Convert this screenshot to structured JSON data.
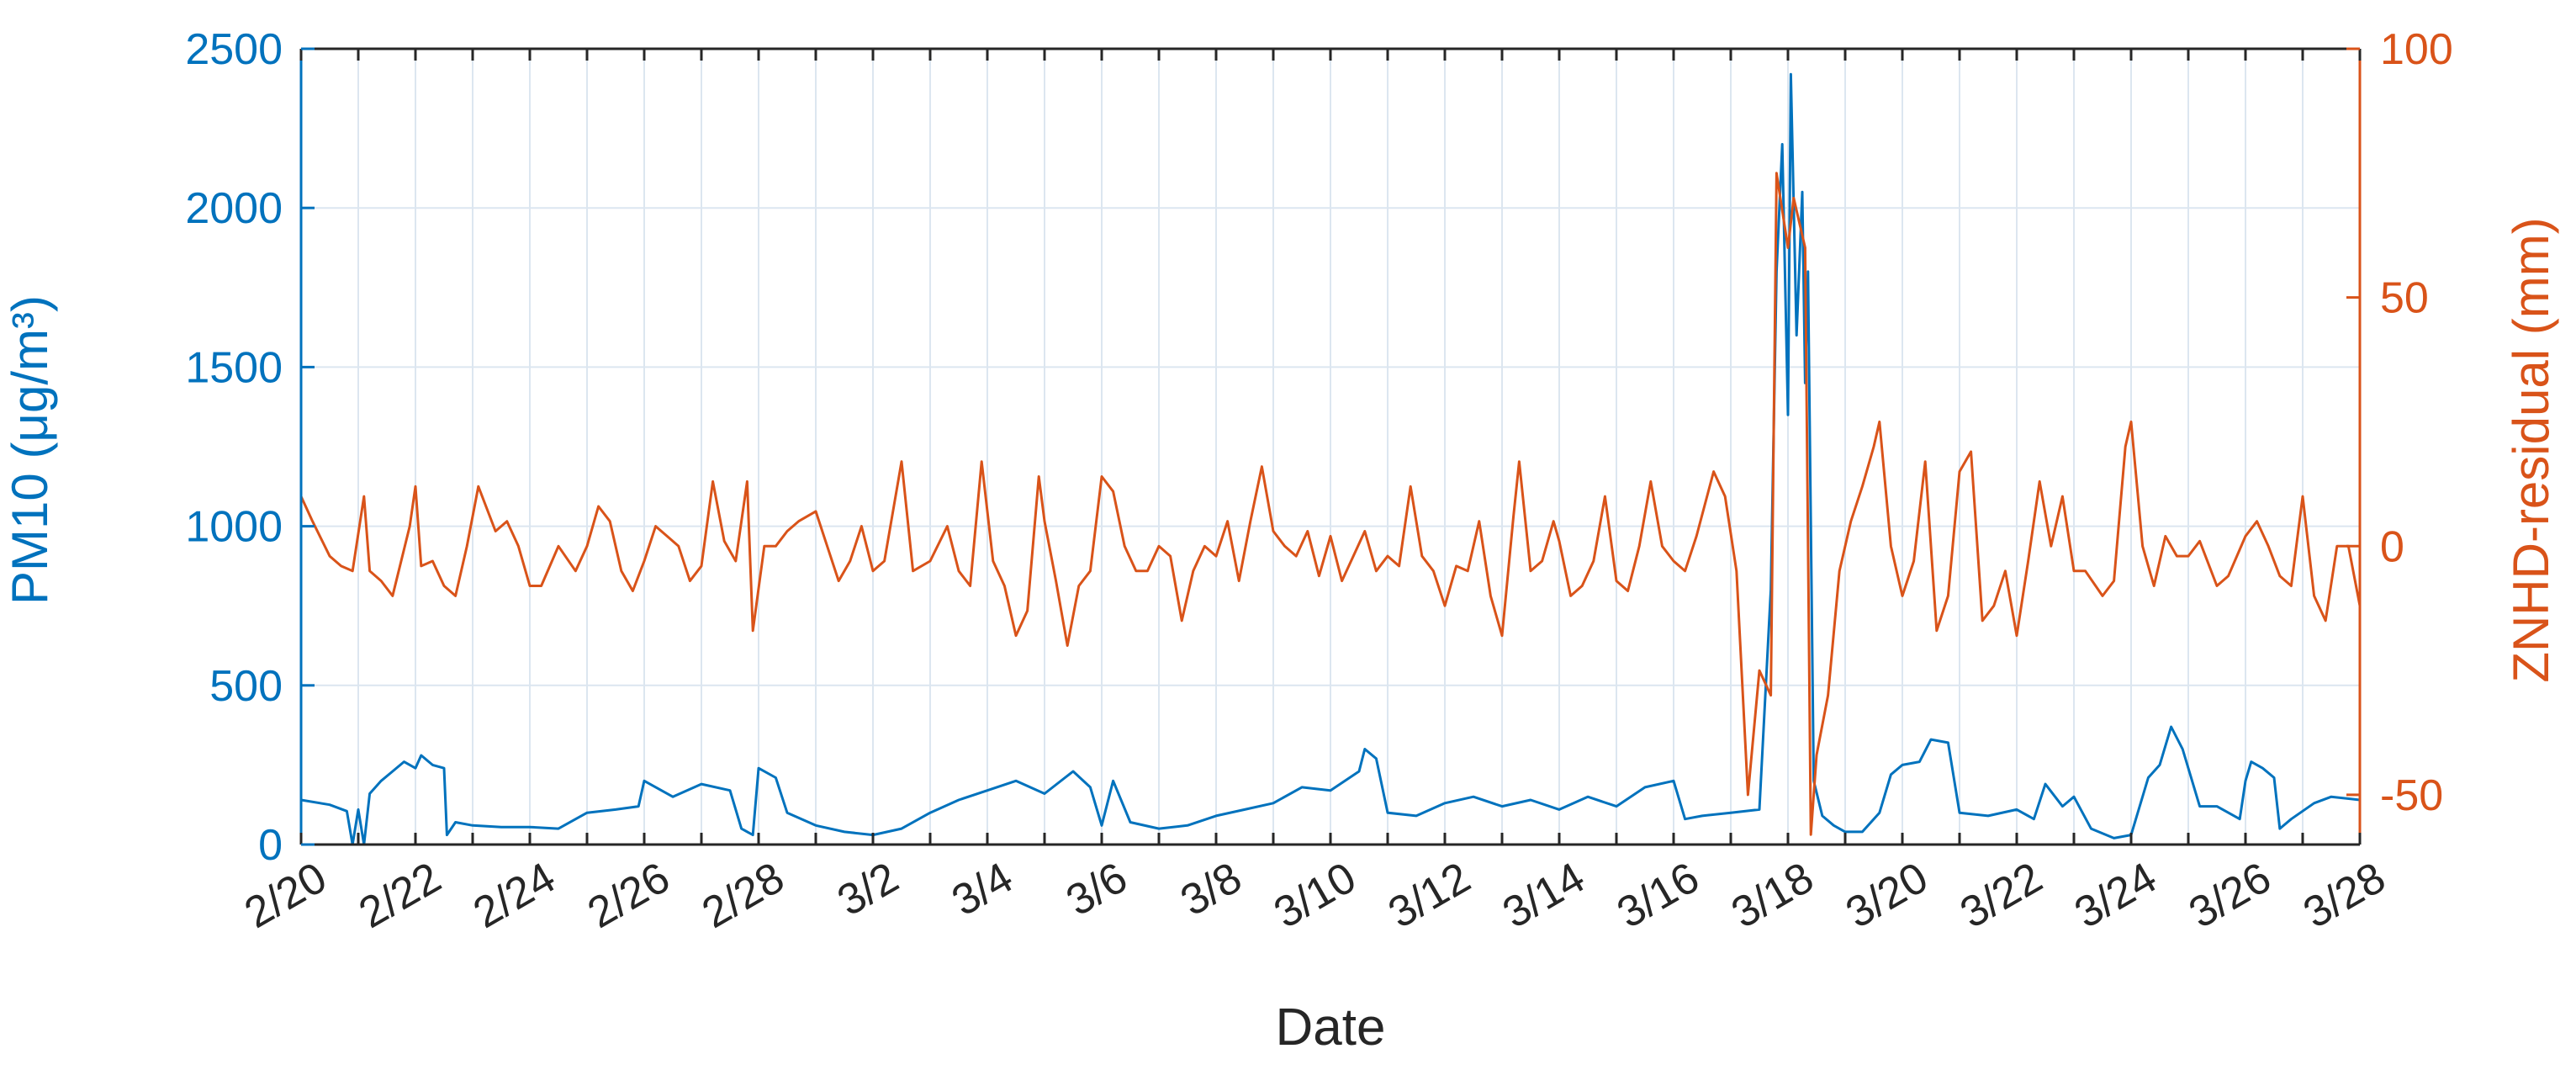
{
  "chart_data": {
    "type": "line",
    "xlabel": "Date",
    "ylabel_left": "PM10 (μg/m³)",
    "ylabel_right": "ZNHD-residual (mm)",
    "x_ticks": [
      "2/20",
      "2/22",
      "2/24",
      "2/26",
      "2/28",
      "3/2",
      "3/4",
      "3/6",
      "3/8",
      "3/10",
      "3/12",
      "3/14",
      "3/16",
      "3/18",
      "3/20",
      "3/22",
      "3/24",
      "3/26",
      "3/28"
    ],
    "x_range_days": [
      0,
      36
    ],
    "y_left": {
      "lim": [
        0,
        2500
      ],
      "ticks": [
        0,
        500,
        1000,
        1500,
        2000,
        2500
      ]
    },
    "y_right": {
      "lim": [
        -60,
        100
      ],
      "ticks": [
        -50,
        0,
        50,
        100
      ]
    },
    "grid": true,
    "colors": {
      "left_series": "#0072BD",
      "right_series": "#D95319",
      "axis_text": "#262626",
      "grid": "#DCE6F0"
    },
    "series": [
      {
        "name": "PM10",
        "axis": "left",
        "points": [
          [
            0,
            140
          ],
          [
            0.5,
            125
          ],
          [
            0.8,
            105
          ],
          [
            0.9,
            0
          ],
          [
            1.0,
            110
          ],
          [
            1.1,
            0
          ],
          [
            1.2,
            160
          ],
          [
            1.4,
            200
          ],
          [
            1.6,
            230
          ],
          [
            1.8,
            260
          ],
          [
            2.0,
            240
          ],
          [
            2.1,
            280
          ],
          [
            2.3,
            250
          ],
          [
            2.5,
            240
          ],
          [
            2.55,
            30
          ],
          [
            2.7,
            70
          ],
          [
            3.0,
            60
          ],
          [
            3.5,
            55
          ],
          [
            4.0,
            55
          ],
          [
            4.5,
            50
          ],
          [
            5.0,
            100
          ],
          [
            5.5,
            110
          ],
          [
            5.9,
            120
          ],
          [
            6.0,
            200
          ],
          [
            6.5,
            150
          ],
          [
            7.0,
            190
          ],
          [
            7.5,
            170
          ],
          [
            7.7,
            50
          ],
          [
            7.9,
            30
          ],
          [
            8.0,
            240
          ],
          [
            8.3,
            210
          ],
          [
            8.5,
            100
          ],
          [
            9.0,
            60
          ],
          [
            9.5,
            40
          ],
          [
            10.0,
            30
          ],
          [
            10.5,
            50
          ],
          [
            11.0,
            100
          ],
          [
            11.5,
            140
          ],
          [
            12.0,
            170
          ],
          [
            12.5,
            200
          ],
          [
            13.0,
            160
          ],
          [
            13.5,
            230
          ],
          [
            13.8,
            180
          ],
          [
            14.0,
            60
          ],
          [
            14.2,
            200
          ],
          [
            14.5,
            70
          ],
          [
            15.0,
            50
          ],
          [
            15.5,
            60
          ],
          [
            16.0,
            90
          ],
          [
            16.5,
            110
          ],
          [
            17.0,
            130
          ],
          [
            17.5,
            180
          ],
          [
            18.0,
            170
          ],
          [
            18.5,
            230
          ],
          [
            18.6,
            300
          ],
          [
            18.8,
            270
          ],
          [
            19.0,
            100
          ],
          [
            19.5,
            90
          ],
          [
            20.0,
            130
          ],
          [
            20.5,
            150
          ],
          [
            21.0,
            120
          ],
          [
            21.5,
            140
          ],
          [
            22.0,
            110
          ],
          [
            22.5,
            150
          ],
          [
            23.0,
            120
          ],
          [
            23.5,
            180
          ],
          [
            24.0,
            200
          ],
          [
            24.2,
            80
          ],
          [
            24.5,
            90
          ],
          [
            25.0,
            100
          ],
          [
            25.5,
            110
          ],
          [
            25.7,
            800
          ],
          [
            25.8,
            1800
          ],
          [
            25.9,
            2200
          ],
          [
            26.0,
            1350
          ],
          [
            26.05,
            2420
          ],
          [
            26.15,
            1600
          ],
          [
            26.25,
            2050
          ],
          [
            26.3,
            1450
          ],
          [
            26.35,
            1800
          ],
          [
            26.4,
            1000
          ],
          [
            26.45,
            200
          ],
          [
            26.6,
            90
          ],
          [
            26.8,
            60
          ],
          [
            27.0,
            40
          ],
          [
            27.3,
            40
          ],
          [
            27.6,
            100
          ],
          [
            27.8,
            220
          ],
          [
            28.0,
            250
          ],
          [
            28.3,
            260
          ],
          [
            28.5,
            330
          ],
          [
            28.8,
            320
          ],
          [
            29.0,
            100
          ],
          [
            29.5,
            90
          ],
          [
            30.0,
            110
          ],
          [
            30.3,
            80
          ],
          [
            30.5,
            190
          ],
          [
            30.8,
            120
          ],
          [
            31.0,
            150
          ],
          [
            31.3,
            50
          ],
          [
            31.7,
            20
          ],
          [
            32.0,
            30
          ],
          [
            32.3,
            210
          ],
          [
            32.5,
            250
          ],
          [
            32.7,
            370
          ],
          [
            32.9,
            300
          ],
          [
            33.2,
            120
          ],
          [
            33.5,
            120
          ],
          [
            33.9,
            80
          ],
          [
            34.0,
            200
          ],
          [
            34.1,
            260
          ],
          [
            34.3,
            240
          ],
          [
            34.5,
            210
          ],
          [
            34.6,
            50
          ],
          [
            34.8,
            80
          ],
          [
            35.2,
            130
          ],
          [
            35.5,
            150
          ],
          [
            36.0,
            140
          ]
        ]
      },
      {
        "name": "ZNHD-residual",
        "axis": "right",
        "points": [
          [
            0,
            10
          ],
          [
            0.2,
            5
          ],
          [
            0.5,
            -2
          ],
          [
            0.7,
            -4
          ],
          [
            0.9,
            -5
          ],
          [
            1.1,
            10
          ],
          [
            1.2,
            -5
          ],
          [
            1.4,
            -7
          ],
          [
            1.6,
            -10
          ],
          [
            1.9,
            4
          ],
          [
            2.0,
            12
          ],
          [
            2.1,
            -4
          ],
          [
            2.3,
            -3
          ],
          [
            2.5,
            -8
          ],
          [
            2.7,
            -10
          ],
          [
            2.9,
            0
          ],
          [
            3.1,
            12
          ],
          [
            3.4,
            3
          ],
          [
            3.6,
            5
          ],
          [
            3.8,
            0
          ],
          [
            4.0,
            -8
          ],
          [
            4.2,
            -8
          ],
          [
            4.5,
            0
          ],
          [
            4.8,
            -5
          ],
          [
            5.0,
            0
          ],
          [
            5.2,
            8
          ],
          [
            5.4,
            5
          ],
          [
            5.6,
            -5
          ],
          [
            5.8,
            -9
          ],
          [
            6.0,
            -3
          ],
          [
            6.2,
            4
          ],
          [
            6.4,
            2
          ],
          [
            6.6,
            0
          ],
          [
            6.8,
            -7
          ],
          [
            7.0,
            -4
          ],
          [
            7.2,
            13
          ],
          [
            7.4,
            1
          ],
          [
            7.6,
            -3
          ],
          [
            7.8,
            13
          ],
          [
            7.9,
            -17
          ],
          [
            8.1,
            0
          ],
          [
            8.3,
            0
          ],
          [
            8.5,
            3
          ],
          [
            8.7,
            5
          ],
          [
            9.0,
            7
          ],
          [
            9.2,
            0
          ],
          [
            9.4,
            -7
          ],
          [
            9.6,
            -3
          ],
          [
            9.8,
            4
          ],
          [
            10.0,
            -5
          ],
          [
            10.2,
            -3
          ],
          [
            10.5,
            17
          ],
          [
            10.7,
            -5
          ],
          [
            11.0,
            -3
          ],
          [
            11.3,
            4
          ],
          [
            11.5,
            -5
          ],
          [
            11.7,
            -8
          ],
          [
            11.9,
            17
          ],
          [
            12.1,
            -3
          ],
          [
            12.3,
            -8
          ],
          [
            12.5,
            -18
          ],
          [
            12.7,
            -13
          ],
          [
            12.9,
            14
          ],
          [
            13.0,
            5
          ],
          [
            13.2,
            -7
          ],
          [
            13.4,
            -20
          ],
          [
            13.6,
            -8
          ],
          [
            13.8,
            -5
          ],
          [
            14.0,
            14
          ],
          [
            14.2,
            11
          ],
          [
            14.4,
            0
          ],
          [
            14.6,
            -5
          ],
          [
            14.8,
            -5
          ],
          [
            15.0,
            0
          ],
          [
            15.2,
            -2
          ],
          [
            15.4,
            -15
          ],
          [
            15.6,
            -5
          ],
          [
            15.8,
            0
          ],
          [
            16.0,
            -2
          ],
          [
            16.2,
            5
          ],
          [
            16.4,
            -7
          ],
          [
            16.6,
            5
          ],
          [
            16.8,
            16
          ],
          [
            17.0,
            3
          ],
          [
            17.2,
            0
          ],
          [
            17.4,
            -2
          ],
          [
            17.6,
            3
          ],
          [
            17.8,
            -6
          ],
          [
            18.0,
            2
          ],
          [
            18.2,
            -7
          ],
          [
            18.4,
            -2
          ],
          [
            18.6,
            3
          ],
          [
            18.8,
            -5
          ],
          [
            19.0,
            -2
          ],
          [
            19.2,
            -4
          ],
          [
            19.4,
            12
          ],
          [
            19.6,
            -2
          ],
          [
            19.8,
            -5
          ],
          [
            20.0,
            -12
          ],
          [
            20.2,
            -4
          ],
          [
            20.4,
            -5
          ],
          [
            20.6,
            5
          ],
          [
            20.8,
            -10
          ],
          [
            21.0,
            -18
          ],
          [
            21.2,
            6
          ],
          [
            21.3,
            17
          ],
          [
            21.5,
            -5
          ],
          [
            21.7,
            -3
          ],
          [
            21.9,
            5
          ],
          [
            22.0,
            1
          ],
          [
            22.2,
            -10
          ],
          [
            22.4,
            -8
          ],
          [
            22.6,
            -3
          ],
          [
            22.8,
            10
          ],
          [
            23.0,
            -7
          ],
          [
            23.2,
            -9
          ],
          [
            23.4,
            0
          ],
          [
            23.6,
            13
          ],
          [
            23.8,
            0
          ],
          [
            24.0,
            -3
          ],
          [
            24.2,
            -5
          ],
          [
            24.4,
            2
          ],
          [
            24.7,
            15
          ],
          [
            24.9,
            10
          ],
          [
            25.1,
            -5
          ],
          [
            25.3,
            -50
          ],
          [
            25.5,
            -25
          ],
          [
            25.7,
            -30
          ],
          [
            25.8,
            75
          ],
          [
            26.0,
            60
          ],
          [
            26.1,
            70
          ],
          [
            26.3,
            60
          ],
          [
            26.4,
            -58
          ],
          [
            26.5,
            -42
          ],
          [
            26.7,
            -30
          ],
          [
            26.9,
            -5
          ],
          [
            27.1,
            5
          ],
          [
            27.3,
            12
          ],
          [
            27.5,
            20
          ],
          [
            27.6,
            25
          ],
          [
            27.8,
            0
          ],
          [
            28.0,
            -10
          ],
          [
            28.2,
            -3
          ],
          [
            28.4,
            17
          ],
          [
            28.6,
            -17
          ],
          [
            28.8,
            -10
          ],
          [
            29.0,
            15
          ],
          [
            29.2,
            19
          ],
          [
            29.4,
            -15
          ],
          [
            29.6,
            -12
          ],
          [
            29.8,
            -5
          ],
          [
            30.0,
            -18
          ],
          [
            30.2,
            -3
          ],
          [
            30.4,
            13
          ],
          [
            30.6,
            0
          ],
          [
            30.8,
            10
          ],
          [
            31.0,
            -5
          ],
          [
            31.2,
            -5
          ],
          [
            31.5,
            -10
          ],
          [
            31.7,
            -7
          ],
          [
            31.9,
            20
          ],
          [
            32.0,
            25
          ],
          [
            32.2,
            0
          ],
          [
            32.4,
            -8
          ],
          [
            32.6,
            2
          ],
          [
            32.8,
            -2
          ],
          [
            33.0,
            -2
          ],
          [
            33.2,
            1
          ],
          [
            33.5,
            -8
          ],
          [
            33.7,
            -6
          ],
          [
            34.0,
            2
          ],
          [
            34.2,
            5
          ],
          [
            34.4,
            0
          ],
          [
            34.6,
            -6
          ],
          [
            34.8,
            -8
          ],
          [
            35.0,
            10
          ],
          [
            35.2,
            -10
          ],
          [
            35.4,
            -15
          ],
          [
            35.6,
            0
          ],
          [
            35.8,
            0
          ],
          [
            36.0,
            -12
          ]
        ]
      }
    ]
  }
}
